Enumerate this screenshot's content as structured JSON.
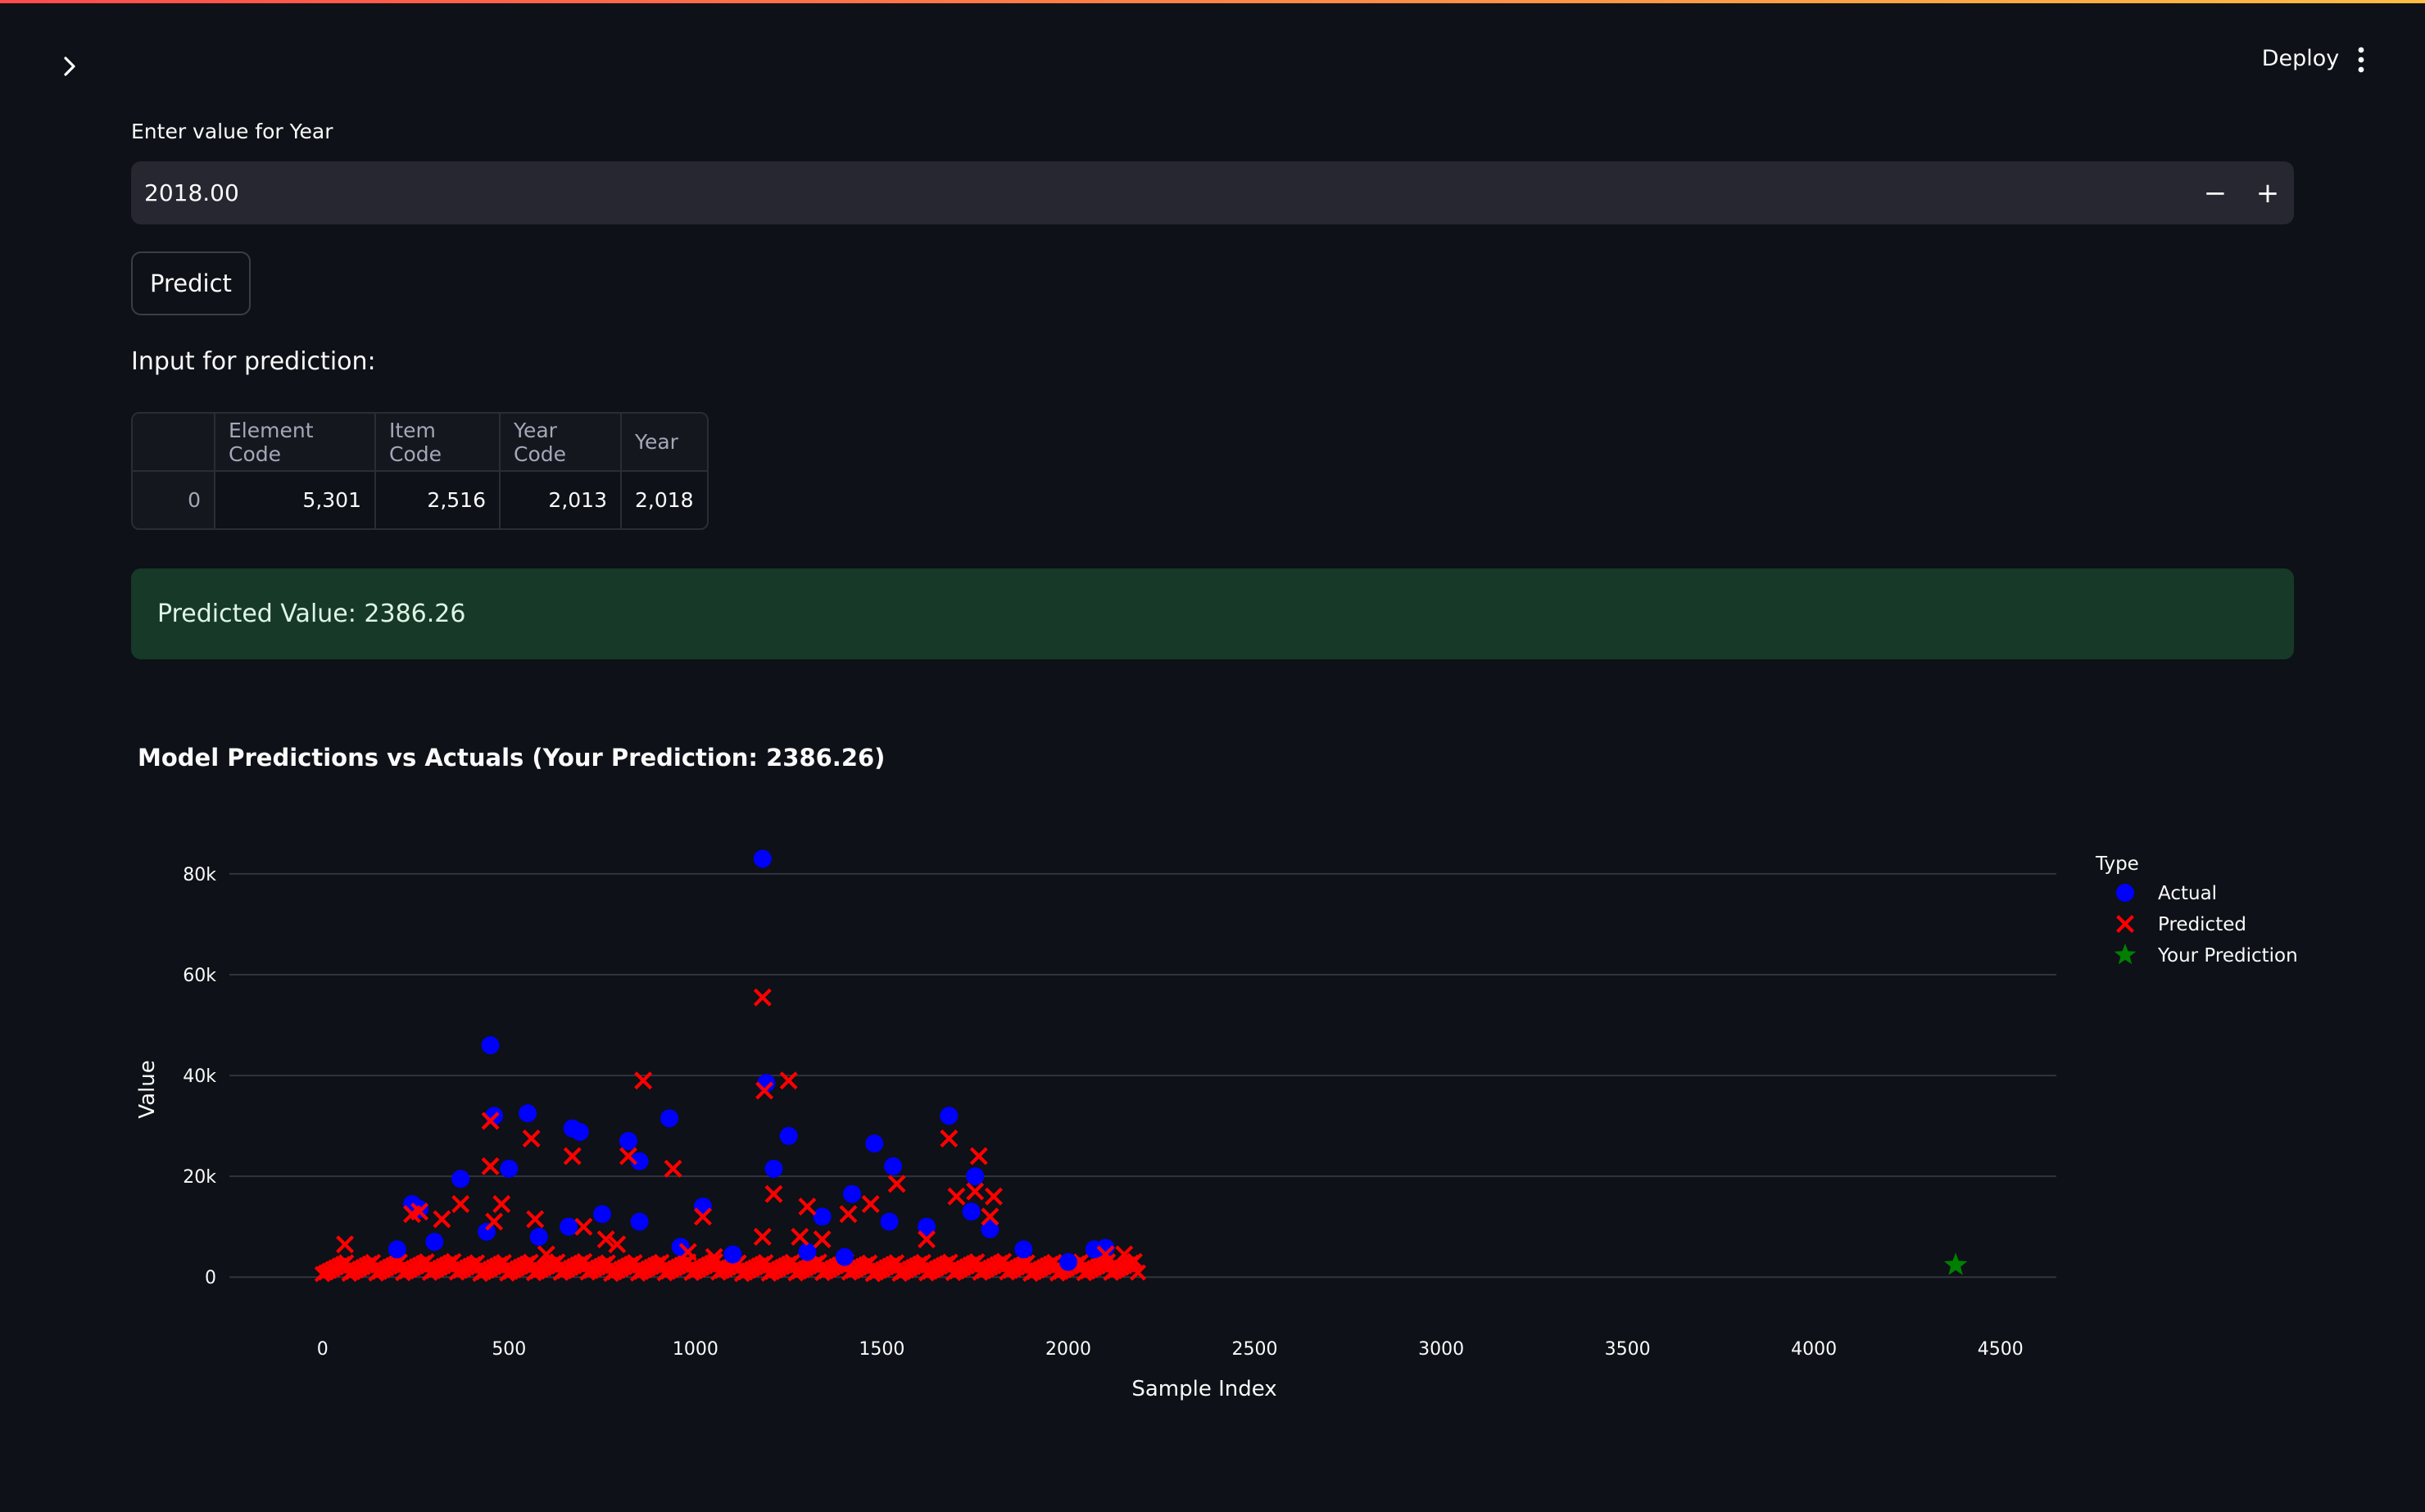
{
  "header": {
    "deploy_label": "Deploy",
    "sidebar_toggle_icon": "chevron-right-icon",
    "menu_icon": "kebab-menu-icon"
  },
  "form": {
    "year_label": "Enter value for Year",
    "year_value": "2018.00",
    "decrement_label": "−",
    "increment_label": "+",
    "predict_label": "Predict"
  },
  "input_section": {
    "heading": "Input for prediction:",
    "columns": [
      "",
      "Element Code",
      "Item Code",
      "Year Code",
      "Year"
    ],
    "rows": [
      [
        "0",
        "5,301",
        "2,516",
        "2,013",
        "2,018"
      ]
    ]
  },
  "result": {
    "message": "Predicted Value: 2386.26"
  },
  "colors": {
    "actual": "#0000ff",
    "predicted": "#ff0000",
    "your_prediction": "#008000",
    "success_bg": "#173928"
  },
  "chart_data": {
    "type": "scatter",
    "title": "Model Predictions vs Actuals (Your Prediction: 2386.26)",
    "xlabel": "Sample Index",
    "ylabel": "Value",
    "xlim": [
      -250,
      4650
    ],
    "ylim": [
      -5000,
      86000
    ],
    "x_ticks": [
      0,
      500,
      1000,
      1500,
      2000,
      2500,
      3000,
      3500,
      4000,
      4500
    ],
    "x_tick_labels": [
      "0",
      "500",
      "1000",
      "1500",
      "2000",
      "2500",
      "3000",
      "3500",
      "4000",
      "4500"
    ],
    "y_ticks": [
      0,
      20000,
      40000,
      60000,
      80000
    ],
    "y_tick_labels": [
      "0",
      "20k",
      "40k",
      "60k",
      "80k"
    ],
    "grid": true,
    "legend": {
      "title": "Type",
      "position": "right"
    },
    "series": [
      {
        "name": "Actual",
        "marker": "circle",
        "color": "#0000ff",
        "points": [
          [
            1180,
            83000
          ],
          [
            450,
            46000
          ],
          [
            550,
            32500
          ],
          [
            460,
            32000
          ],
          [
            670,
            29500
          ],
          [
            690,
            28800
          ],
          [
            930,
            31500
          ],
          [
            820,
            27000
          ],
          [
            850,
            23000
          ],
          [
            1250,
            28000
          ],
          [
            1210,
            21500
          ],
          [
            1480,
            26500
          ],
          [
            1680,
            32000
          ],
          [
            1530,
            22000
          ],
          [
            1750,
            20000
          ],
          [
            370,
            19500
          ],
          [
            500,
            21500
          ],
          [
            1420,
            16500
          ],
          [
            1340,
            12000
          ],
          [
            1520,
            11000
          ],
          [
            1740,
            13000
          ],
          [
            1790,
            9500
          ],
          [
            1020,
            14000
          ],
          [
            850,
            11000
          ],
          [
            750,
            12500
          ],
          [
            660,
            10000
          ],
          [
            580,
            8000
          ],
          [
            240,
            14500
          ],
          [
            260,
            13500
          ],
          [
            300,
            7000
          ],
          [
            200,
            5500
          ],
          [
            1620,
            10000
          ],
          [
            1880,
            5500
          ],
          [
            2070,
            5500
          ],
          [
            2100,
            5800
          ],
          [
            440,
            9000
          ],
          [
            1190,
            38500
          ],
          [
            960,
            6000
          ],
          [
            1100,
            4500
          ],
          [
            1300,
            5000
          ],
          [
            1400,
            4000
          ],
          [
            2000,
            3000
          ]
        ]
      },
      {
        "name": "Predicted",
        "marker": "x",
        "color": "#ff0000",
        "points": [
          [
            1180,
            55500
          ],
          [
            860,
            39000
          ],
          [
            1250,
            39000
          ],
          [
            1185,
            37000
          ],
          [
            450,
            31000
          ],
          [
            560,
            27500
          ],
          [
            670,
            24000
          ],
          [
            820,
            24000
          ],
          [
            940,
            21500
          ],
          [
            450,
            22000
          ],
          [
            1680,
            27500
          ],
          [
            1760,
            24000
          ],
          [
            1210,
            16500
          ],
          [
            1300,
            14000
          ],
          [
            1470,
            14500
          ],
          [
            1540,
            18500
          ],
          [
            1700,
            16000
          ],
          [
            1750,
            17000
          ],
          [
            1800,
            16000
          ],
          [
            1790,
            12000
          ],
          [
            1410,
            12500
          ],
          [
            1020,
            12000
          ],
          [
            570,
            11500
          ],
          [
            480,
            14500
          ],
          [
            460,
            11000
          ],
          [
            370,
            14500
          ],
          [
            320,
            11500
          ],
          [
            240,
            12500
          ],
          [
            260,
            13000
          ],
          [
            60,
            6500
          ],
          [
            700,
            10000
          ],
          [
            760,
            7500
          ],
          [
            790,
            6500
          ],
          [
            1180,
            8000
          ],
          [
            1280,
            8000
          ],
          [
            1340,
            7500
          ],
          [
            1620,
            7500
          ],
          [
            2100,
            4500
          ],
          [
            2150,
            4500
          ],
          [
            980,
            5000
          ],
          [
            1050,
            4000
          ],
          [
            600,
            4500
          ]
        ]
      },
      {
        "name": "Your Prediction",
        "marker": "star",
        "color": "#008000",
        "points": [
          [
            4380,
            2386.26
          ]
        ]
      }
    ]
  }
}
